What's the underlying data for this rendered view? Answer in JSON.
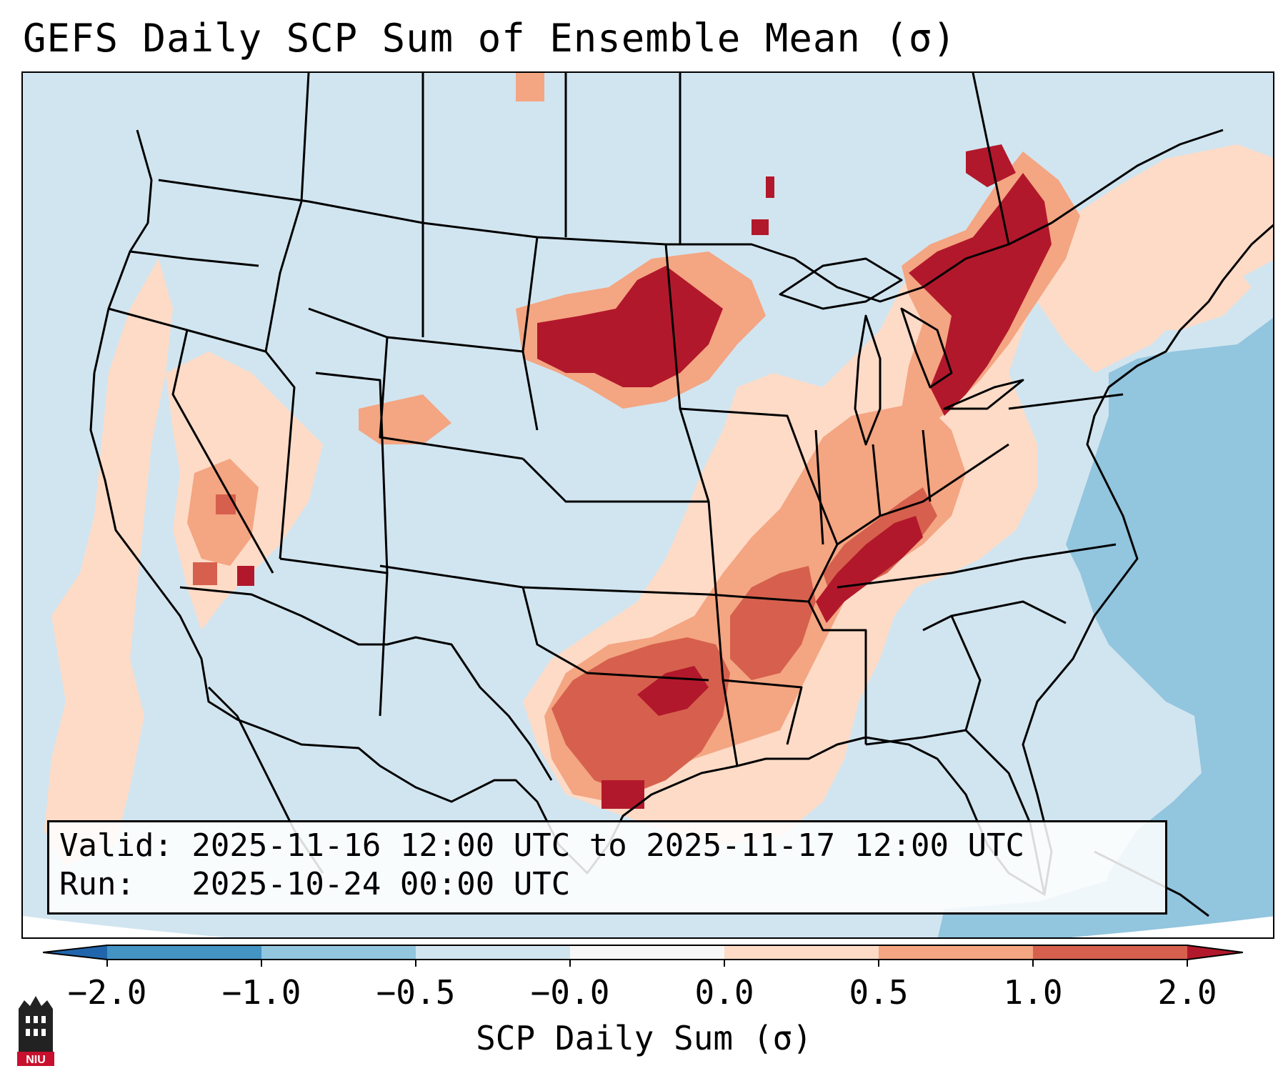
{
  "title": "GEFS Daily SCP Sum of Ensemble Mean (σ)",
  "info_box": {
    "valid_line": "Valid: 2025-11-16 12:00 UTC to 2025-11-17 12:00 UTC",
    "run_line": "Run:   2025-10-24 00:00 UTC"
  },
  "colorbar": {
    "label": "SCP Daily Sum (σ)",
    "ticks": [
      "−2.0",
      "−1.0",
      "−0.5",
      "−0.0",
      "0.0",
      "0.5",
      "1.0",
      "2.0"
    ],
    "colors": {
      "under": "#2166ac",
      "bin_neg2_neg1": "#4393c3",
      "bin_neg1_neg05": "#92c5de",
      "bin_neg05_0": "#d1e5f0",
      "bin_0_0": "#f7f7f7",
      "bin_0_05": "#fddbc7",
      "bin_05_1": "#f4a582",
      "bin_1_2": "#d6604d",
      "over": "#b2182b"
    }
  },
  "map": {
    "region": "Contiguous United States",
    "background": "#d1e5f0",
    "border_color": "#000000"
  },
  "logo": {
    "text": "NIU",
    "color": "#c8102e"
  }
}
